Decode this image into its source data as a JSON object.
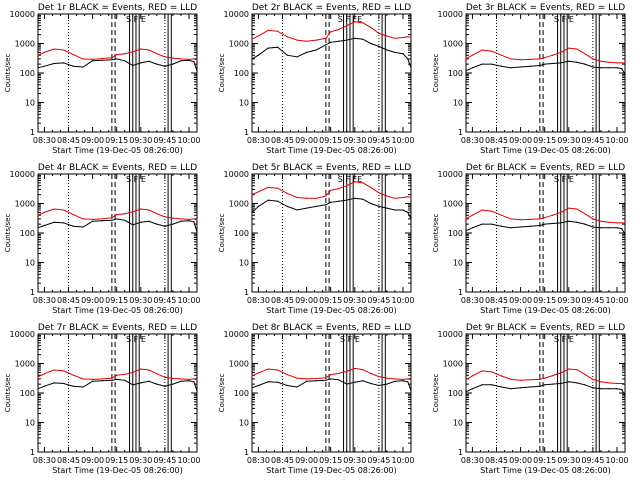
{
  "colors": {
    "events": "#000000",
    "lld": "#e00000",
    "background": "#ffffff"
  },
  "shared": {
    "xlabel": "Start Time (19-Dec-05 08:26:00)",
    "ylabel": "Counts/sec",
    "xticks": [
      "08:30",
      "08:45",
      "09:00",
      "09:15",
      "09:30",
      "09:45",
      "10:00"
    ],
    "yticks": [
      "1",
      "10",
      "100",
      "1000",
      "10000"
    ]
  },
  "chart_data": [
    {
      "type": "line",
      "title": "Det 1r BLACK = Events, RED = LLD",
      "marker_letters": "S  F  E",
      "xlim": [
        "08:26",
        "10:05"
      ],
      "ylim": [
        1,
        10000
      ],
      "yscale": "log",
      "x": [
        "08:26",
        "08:30",
        "08:36",
        "08:42",
        "08:48",
        "08:54",
        "09:00",
        "09:06",
        "09:12",
        "09:15",
        "09:20",
        "09:25",
        "09:30",
        "09:35",
        "09:40",
        "09:45",
        "09:50",
        "09:55",
        "10:00",
        "10:03",
        "10:05"
      ],
      "series": [
        {
          "name": "Events",
          "values": [
            150,
            170,
            210,
            220,
            170,
            160,
            260,
            270,
            280,
            300,
            260,
            180,
            220,
            250,
            200,
            170,
            200,
            260,
            270,
            240,
            120
          ]
        },
        {
          "name": "LLD",
          "values": [
            400,
            500,
            650,
            600,
            420,
            300,
            290,
            310,
            330,
            420,
            450,
            520,
            650,
            600,
            450,
            350,
            320,
            300,
            290,
            300,
            280
          ]
        }
      ]
    },
    {
      "type": "line",
      "title": "Det 2r BLACK = Events, RED = LLD",
      "marker_letters": "S  F  FE",
      "xlim": [
        "08:26",
        "10:05"
      ],
      "ylim": [
        1,
        10000
      ],
      "yscale": "log",
      "x": [
        "08:26",
        "08:30",
        "08:36",
        "08:42",
        "08:48",
        "08:54",
        "09:00",
        "09:06",
        "09:12",
        "09:15",
        "09:20",
        "09:25",
        "09:30",
        "09:35",
        "09:40",
        "09:45",
        "09:50",
        "09:55",
        "10:00",
        "10:03",
        "10:05"
      ],
      "series": [
        {
          "name": "Events",
          "values": [
            300,
            400,
            700,
            750,
            400,
            350,
            500,
            600,
            900,
            1100,
            1200,
            1300,
            1500,
            1400,
            1000,
            800,
            600,
            500,
            450,
            300,
            150
          ]
        },
        {
          "name": "LLD",
          "values": [
            1400,
            1800,
            2800,
            2600,
            1700,
            1300,
            1200,
            1300,
            1500,
            2500,
            3000,
            4000,
            5500,
            5000,
            3500,
            2200,
            1800,
            1500,
            1600,
            1700,
            1600
          ]
        }
      ]
    },
    {
      "type": "line",
      "title": "Det 3r BLACK = Events, RED = LLD",
      "marker_letters": "S  F  E",
      "xlim": [
        "08:26",
        "10:05"
      ],
      "ylim": [
        1,
        10000
      ],
      "yscale": "log",
      "x": [
        "08:26",
        "08:30",
        "08:36",
        "08:42",
        "08:48",
        "08:54",
        "09:00",
        "09:06",
        "09:12",
        "09:15",
        "09:20",
        "09:25",
        "09:30",
        "09:35",
        "09:40",
        "09:45",
        "09:50",
        "09:55",
        "10:00",
        "10:03",
        "10:05"
      ],
      "series": [
        {
          "name": "Events",
          "values": [
            120,
            150,
            200,
            200,
            170,
            150,
            160,
            170,
            180,
            200,
            210,
            220,
            250,
            230,
            200,
            160,
            150,
            150,
            150,
            140,
            90
          ]
        },
        {
          "name": "LLD",
          "values": [
            300,
            400,
            600,
            550,
            400,
            300,
            280,
            290,
            300,
            330,
            400,
            500,
            700,
            650,
            450,
            300,
            250,
            230,
            220,
            220,
            220
          ]
        }
      ]
    },
    {
      "type": "line",
      "title": "Det 4r BLACK = Events, RED = LLD",
      "marker_letters": "S  F  E",
      "xlim": [
        "08:26",
        "10:05"
      ],
      "ylim": [
        1,
        10000
      ],
      "yscale": "log",
      "x": [
        "08:26",
        "08:30",
        "08:36",
        "08:42",
        "08:48",
        "08:54",
        "09:00",
        "09:06",
        "09:12",
        "09:15",
        "09:20",
        "09:25",
        "09:30",
        "09:35",
        "09:40",
        "09:45",
        "09:50",
        "09:55",
        "10:00",
        "10:03",
        "10:05"
      ],
      "series": [
        {
          "name": "Events",
          "values": [
            150,
            180,
            230,
            220,
            170,
            160,
            250,
            260,
            270,
            300,
            270,
            190,
            230,
            250,
            200,
            170,
            200,
            250,
            260,
            240,
            110
          ]
        },
        {
          "name": "LLD",
          "values": [
            400,
            500,
            650,
            600,
            420,
            300,
            290,
            300,
            330,
            420,
            450,
            520,
            650,
            600,
            450,
            350,
            320,
            300,
            290,
            300,
            280
          ]
        }
      ]
    },
    {
      "type": "line",
      "title": "Det 5r BLACK = Events, RED = LLD",
      "marker_letters": "S  F  FE",
      "xlim": [
        "08:26",
        "10:05"
      ],
      "ylim": [
        1,
        10000
      ],
      "yscale": "log",
      "x": [
        "08:26",
        "08:30",
        "08:36",
        "08:42",
        "08:48",
        "08:54",
        "09:00",
        "09:06",
        "09:12",
        "09:15",
        "09:20",
        "09:25",
        "09:30",
        "09:35",
        "09:40",
        "09:45",
        "09:50",
        "09:55",
        "10:00",
        "10:03",
        "10:05"
      ],
      "series": [
        {
          "name": "Events",
          "values": [
            500,
            800,
            1300,
            1200,
            800,
            600,
            700,
            800,
            900,
            1100,
            1200,
            1300,
            1500,
            1400,
            1000,
            800,
            700,
            600,
            600,
            500,
            300
          ]
        },
        {
          "name": "LLD",
          "values": [
            2000,
            2500,
            3500,
            3300,
            2200,
            1600,
            1500,
            1500,
            1800,
            2800,
            3200,
            4000,
            5500,
            5000,
            3500,
            2300,
            1800,
            1500,
            1600,
            1700,
            1600
          ]
        }
      ]
    },
    {
      "type": "line",
      "title": "Det 6r BLACK = Events, RED = LLD",
      "marker_letters": "S  F  E",
      "xlim": [
        "08:26",
        "10:05"
      ],
      "ylim": [
        1,
        10000
      ],
      "yscale": "log",
      "x": [
        "08:26",
        "08:30",
        "08:36",
        "08:42",
        "08:48",
        "08:54",
        "09:00",
        "09:06",
        "09:12",
        "09:15",
        "09:20",
        "09:25",
        "09:30",
        "09:35",
        "09:40",
        "09:45",
        "09:50",
        "09:55",
        "10:00",
        "10:03",
        "10:05"
      ],
      "series": [
        {
          "name": "Events",
          "values": [
            120,
            150,
            200,
            200,
            170,
            150,
            160,
            170,
            180,
            200,
            210,
            220,
            250,
            230,
            200,
            160,
            150,
            150,
            150,
            140,
            90
          ]
        },
        {
          "name": "LLD",
          "values": [
            300,
            400,
            600,
            550,
            400,
            300,
            280,
            290,
            300,
            330,
            400,
            500,
            700,
            650,
            450,
            300,
            250,
            230,
            220,
            220,
            220
          ]
        }
      ]
    },
    {
      "type": "line",
      "title": "Det 7r BLACK = Events, RED = LLD",
      "marker_letters": "S  F  E",
      "xlim": [
        "08:26",
        "10:05"
      ],
      "ylim": [
        1,
        10000
      ],
      "yscale": "log",
      "x": [
        "08:26",
        "08:30",
        "08:36",
        "08:42",
        "08:48",
        "08:54",
        "09:00",
        "09:06",
        "09:12",
        "09:15",
        "09:20",
        "09:25",
        "09:30",
        "09:35",
        "09:40",
        "09:45",
        "09:50",
        "09:55",
        "10:00",
        "10:03",
        "10:05"
      ],
      "series": [
        {
          "name": "Events",
          "values": [
            140,
            170,
            220,
            210,
            170,
            160,
            250,
            260,
            270,
            290,
            270,
            190,
            220,
            250,
            200,
            170,
            200,
            250,
            260,
            240,
            120
          ]
        },
        {
          "name": "LLD",
          "values": [
            350,
            450,
            600,
            560,
            400,
            300,
            290,
            300,
            320,
            400,
            430,
            500,
            650,
            600,
            450,
            340,
            310,
            300,
            290,
            300,
            280
          ]
        }
      ]
    },
    {
      "type": "line",
      "title": "Det 8r BLACK = Events, RED = LLD",
      "marker_letters": "S  F  E",
      "xlim": [
        "08:26",
        "10:05"
      ],
      "ylim": [
        1,
        10000
      ],
      "yscale": "log",
      "x": [
        "08:26",
        "08:30",
        "08:36",
        "08:42",
        "08:48",
        "08:54",
        "09:00",
        "09:06",
        "09:12",
        "09:15",
        "09:20",
        "09:25",
        "09:30",
        "09:35",
        "09:40",
        "09:45",
        "09:50",
        "09:55",
        "10:00",
        "10:03",
        "10:05"
      ],
      "series": [
        {
          "name": "Events",
          "values": [
            150,
            180,
            240,
            230,
            180,
            160,
            250,
            260,
            270,
            300,
            280,
            200,
            230,
            260,
            210,
            180,
            200,
            250,
            260,
            240,
            120
          ]
        },
        {
          "name": "LLD",
          "values": [
            380,
            480,
            650,
            600,
            420,
            320,
            300,
            310,
            330,
            420,
            460,
            540,
            680,
            620,
            460,
            360,
            320,
            300,
            290,
            300,
            280
          ]
        }
      ]
    },
    {
      "type": "line",
      "title": "Det 9r BLACK = Events, RED = LLD",
      "marker_letters": "S  F  E",
      "xlim": [
        "08:26",
        "10:05"
      ],
      "ylim": [
        1,
        10000
      ],
      "yscale": "log",
      "x": [
        "08:26",
        "08:30",
        "08:36",
        "08:42",
        "08:48",
        "08:54",
        "09:00",
        "09:06",
        "09:12",
        "09:15",
        "09:20",
        "09:25",
        "09:30",
        "09:35",
        "09:40",
        "09:45",
        "09:50",
        "09:55",
        "10:00",
        "10:03",
        "10:05"
      ],
      "series": [
        {
          "name": "Events",
          "values": [
            110,
            140,
            190,
            190,
            160,
            140,
            150,
            160,
            170,
            190,
            200,
            210,
            240,
            220,
            190,
            150,
            140,
            140,
            140,
            130,
            80
          ]
        },
        {
          "name": "LLD",
          "values": [
            280,
            380,
            560,
            520,
            380,
            290,
            270,
            280,
            290,
            320,
            390,
            480,
            650,
            620,
            430,
            290,
            240,
            220,
            210,
            210,
            210
          ]
        }
      ]
    }
  ]
}
